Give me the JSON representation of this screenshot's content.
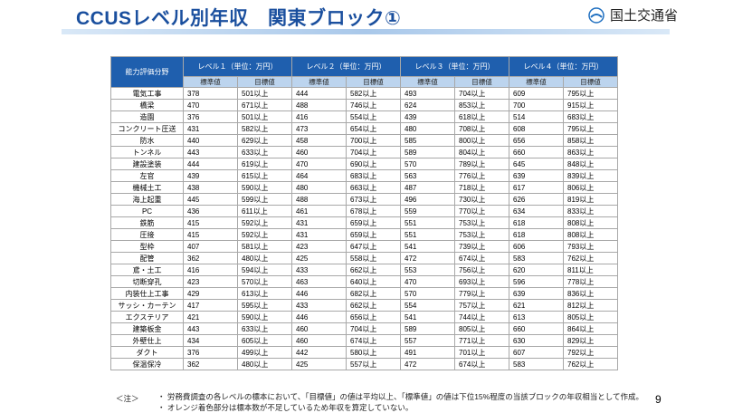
{
  "header": {
    "title": "CCUSレベル別年収　関東ブロック①",
    "logo": "国土交通省"
  },
  "table": {
    "corner": "能力評価分野",
    "levels": [
      {
        "label": "レベル１（単位：万円）",
        "standard": "標準値",
        "target": "目標値"
      },
      {
        "label": "レベル２（単位：万円）",
        "standard": "標準値",
        "target": "目標値"
      },
      {
        "label": "レベル３（単位：万円）",
        "standard": "標準値",
        "target": "目標値"
      },
      {
        "label": "レベル４（単位：万円）",
        "standard": "標準値",
        "target": "目標値"
      }
    ],
    "rows": [
      [
        "電気工事",
        378,
        "501以上",
        444,
        "582以上",
        493,
        "704以上",
        609,
        "795以上"
      ],
      [
        "橋梁",
        470,
        "671以上",
        488,
        "746以上",
        624,
        "853以上",
        700,
        "915以上"
      ],
      [
        "造園",
        376,
        "501以上",
        416,
        "554以上",
        439,
        "618以上",
        514,
        "683以上"
      ],
      [
        "コンクリート圧送",
        431,
        "582以上",
        473,
        "654以上",
        480,
        "708以上",
        608,
        "795以上"
      ],
      [
        "防水",
        440,
        "629以上",
        458,
        "700以上",
        585,
        "800以上",
        656,
        "858以上"
      ],
      [
        "トンネル",
        443,
        "633以上",
        460,
        "704以上",
        589,
        "804以上",
        660,
        "863以上"
      ],
      [
        "建設塗装",
        444,
        "619以上",
        470,
        "690以上",
        570,
        "789以上",
        645,
        "848以上"
      ],
      [
        "左官",
        439,
        "615以上",
        464,
        "683以上",
        563,
        "776以上",
        639,
        "839以上"
      ],
      [
        "機械土工",
        438,
        "590以上",
        480,
        "663以上",
        487,
        "718以上",
        617,
        "806以上"
      ],
      [
        "海上起重",
        445,
        "599以上",
        488,
        "673以上",
        496,
        "730以上",
        626,
        "819以上"
      ],
      [
        "PC",
        436,
        "611以上",
        461,
        "678以上",
        559,
        "770以上",
        634,
        "833以上"
      ],
      [
        "鉄筋",
        415,
        "592以上",
        431,
        "659以上",
        551,
        "753以上",
        618,
        "808以上"
      ],
      [
        "圧接",
        415,
        "592以上",
        431,
        "659以上",
        551,
        "753以上",
        618,
        "808以上"
      ],
      [
        "型枠",
        407,
        "581以上",
        423,
        "647以上",
        541,
        "739以上",
        606,
        "793以上"
      ],
      [
        "配管",
        362,
        "480以上",
        425,
        "558以上",
        472,
        "674以上",
        583,
        "762以上"
      ],
      [
        "鳶・土工",
        416,
        "594以上",
        433,
        "662以上",
        553,
        "756以上",
        620,
        "811以上"
      ],
      [
        "切断穿孔",
        423,
        "570以上",
        463,
        "640以上",
        470,
        "693以上",
        596,
        "778以上"
      ],
      [
        "内装仕上工事",
        429,
        "613以上",
        446,
        "682以上",
        570,
        "779以上",
        639,
        "836以上"
      ],
      [
        "サッシ・カーテン",
        417,
        "595以上",
        433,
        "662以上",
        554,
        "757以上",
        621,
        "812以上"
      ],
      [
        "エクステリア",
        421,
        "590以上",
        446,
        "656以上",
        541,
        "744以上",
        613,
        "805以上"
      ],
      [
        "建築板金",
        443,
        "633以上",
        460,
        "704以上",
        589,
        "805以上",
        660,
        "864以上"
      ],
      [
        "外壁仕上",
        434,
        "605以上",
        460,
        "674以上",
        557,
        "771以上",
        630,
        "829以上"
      ],
      [
        "ダクト",
        376,
        "499以上",
        442,
        "580以上",
        491,
        "701以上",
        607,
        "792以上"
      ],
      [
        "保温保冷",
        362,
        "480以上",
        425,
        "557以上",
        472,
        "674以上",
        583,
        "762以上"
      ]
    ]
  },
  "notes": {
    "label": "＜注＞",
    "items": [
      "労務費調査の各レベルの標本において、「目標値」の値は平均以上、「標準値」の値は下位15%程度の当該ブロックの年収相当として作成。",
      "オレンジ着色部分は標本数が不足しているため年収を算定していない。"
    ],
    "page": "9"
  }
}
